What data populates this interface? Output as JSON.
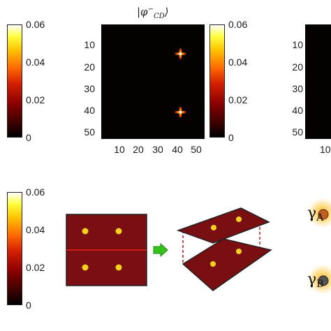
{
  "top_plot": {
    "title": "|φ⁻CD⟩",
    "title_main": "|φ",
    "title_sup": "−",
    "title_sub": "CD",
    "title_end": "⟩",
    "y_ticks": [
      "10",
      "20",
      "30",
      "40",
      "50"
    ],
    "x_ticks": [
      "10",
      "20",
      "30",
      "40",
      "50"
    ],
    "colorbar_ticks": [
      "0.06",
      "0.04",
      "0.02",
      "0"
    ],
    "left_colorbar_ticks": [
      "0.06",
      "0.04",
      "0.02",
      "0"
    ],
    "right_plot_y_ticks": [
      "10",
      "20",
      "30",
      "40",
      "50"
    ],
    "right_plot_x_tick": "10"
  },
  "bottom": {
    "colorbar_ticks": [
      "0.06",
      "0.04",
      "0.02",
      "0"
    ],
    "label_a": "γ",
    "label_a_sub": "A",
    "label_b": "γ",
    "label_b_sub": "B"
  },
  "chart_data": {
    "type": "heatmap",
    "title": "|φ⁻CD⟩",
    "x_range": [
      1,
      52
    ],
    "y_range": [
      1,
      52
    ],
    "color_range": [
      0,
      0.06
    ],
    "colormap": "hot",
    "peaks": [
      {
        "x": 40,
        "y": 14,
        "value": 0.06
      },
      {
        "x": 40,
        "y": 40,
        "value": 0.06
      }
    ],
    "background_value": 0
  },
  "colors": {
    "sheet": "#7a0f12",
    "dot": "#f5d020",
    "line": "#e62020",
    "arrow": "#36c21c"
  }
}
